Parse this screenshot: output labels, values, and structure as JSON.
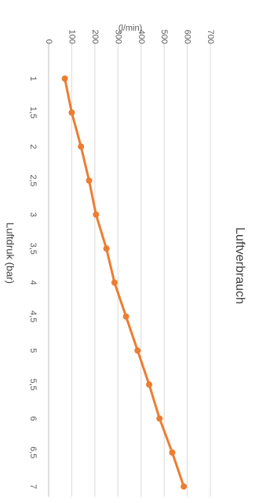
{
  "chart_data": {
    "type": "line",
    "orientation": "rotated-90-clockwise",
    "title": "Luftverbrauch",
    "xlabel": "Luftdruk (bar)",
    "ylabel": "(l/min)",
    "x": [
      1,
      1.5,
      2,
      2.5,
      3,
      3.5,
      4,
      4.5,
      5,
      5.5,
      6,
      6.5,
      7
    ],
    "x_tick_labels": [
      "1",
      "1,5",
      "2",
      "2,5",
      "3",
      "3,5",
      "4",
      "4,5",
      "5",
      "5,5",
      "6",
      "6,5",
      "7"
    ],
    "y_ticks": [
      0,
      100,
      200,
      300,
      400,
      500,
      600,
      700
    ],
    "ylim": [
      0,
      700
    ],
    "series": [
      {
        "values": [
          70,
          100,
          140,
          175,
          205,
          250,
          285,
          335,
          385,
          435,
          480,
          535,
          585
        ],
        "color": "#ed7d31"
      }
    ],
    "grid": true,
    "legend": "none"
  }
}
